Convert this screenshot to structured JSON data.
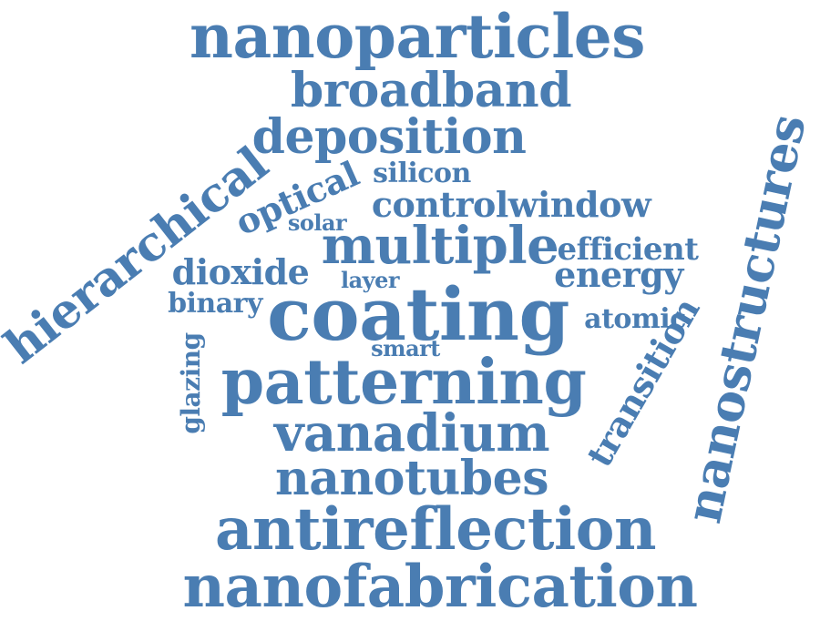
{
  "cloud": {
    "color": "#4a7db2",
    "words": [
      {
        "text": "nanoparticles"
      },
      {
        "text": "broadband"
      },
      {
        "text": "deposition"
      },
      {
        "text": "silicon"
      },
      {
        "text": "optical"
      },
      {
        "text": "solar"
      },
      {
        "text": "controlwindow"
      },
      {
        "text": "hierarchical"
      },
      {
        "text": "multiple"
      },
      {
        "text": "efficient"
      },
      {
        "text": "dioxide"
      },
      {
        "text": "layer"
      },
      {
        "text": "energy"
      },
      {
        "text": "binary"
      },
      {
        "text": "coating"
      },
      {
        "text": "atomic"
      },
      {
        "text": "smart"
      },
      {
        "text": "glazing"
      },
      {
        "text": "patterning"
      },
      {
        "text": "transition"
      },
      {
        "text": "vanadium"
      },
      {
        "text": "nanotubes"
      },
      {
        "text": "antireflection"
      },
      {
        "text": "nanofabrication"
      },
      {
        "text": "nanostructures"
      }
    ]
  }
}
